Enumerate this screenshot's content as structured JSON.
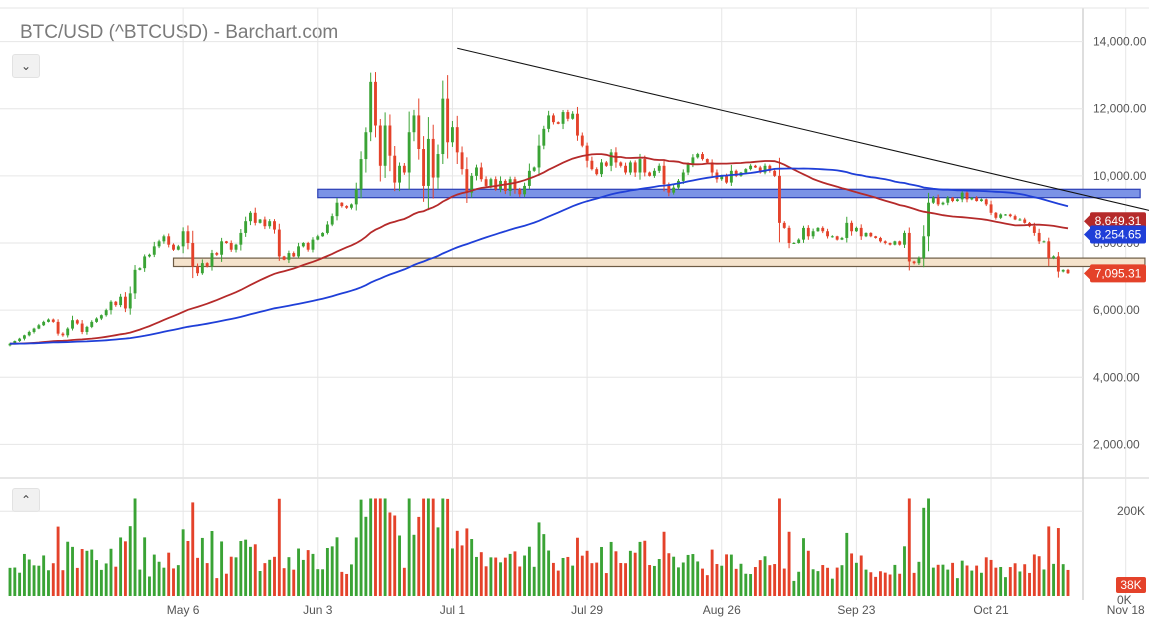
{
  "header": {
    "title": "BTC/USD (^BTCUSD) - Barchart.com",
    "collapse_price_icon": "chevron-down-icon",
    "collapse_volume_icon": "chevron-up-icon"
  },
  "colors": {
    "up": "#3aa335",
    "down": "#e4422a",
    "ma_red": "#b52a2a",
    "ma_blue": "#1f3fd8",
    "trendline": "#111111",
    "resistance_zone_fill": "#7b93e6",
    "resistance_zone_stroke": "#2b3fb5",
    "support_zone_fill": "#f5e3cc",
    "support_zone_stroke": "#6d5b45",
    "grid": "#e6e6e6"
  },
  "chart_data": {
    "type": "candlestick",
    "price_axis": {
      "ylim": [
        1000,
        15000
      ],
      "ticks": [
        2000,
        4000,
        6000,
        8000,
        10000,
        12000,
        14000
      ],
      "tick_labels": [
        "2,000.00",
        "4,000.00",
        "6,000.00",
        "8,000.00",
        "10,000.00",
        "12,000.00",
        "14,000.00"
      ]
    },
    "volume_axis": {
      "ylim": [
        0,
        250000
      ],
      "ticks": [
        0,
        200000
      ],
      "tick_labels": [
        "0K",
        "200K"
      ]
    },
    "x_labels": [
      {
        "index": 36,
        "label": "May 6"
      },
      {
        "index": 64,
        "label": "Jun 3"
      },
      {
        "index": 92,
        "label": "Jul 1"
      },
      {
        "index": 120,
        "label": "Jul 29"
      },
      {
        "index": 148,
        "label": "Aug 26"
      },
      {
        "index": 176,
        "label": "Sep 23"
      },
      {
        "index": 204,
        "label": "Oct 21"
      },
      {
        "index": 232,
        "label": "Nov 18"
      }
    ],
    "closes": [
      5000,
      5080,
      5150,
      5250,
      5350,
      5450,
      5550,
      5650,
      5720,
      5650,
      5300,
      5250,
      5450,
      5700,
      5600,
      5350,
      5500,
      5650,
      5750,
      5850,
      6000,
      6250,
      6150,
      6400,
      6050,
      6500,
      7200,
      7250,
      7600,
      7650,
      7900,
      8050,
      8200,
      7950,
      7800,
      7900,
      8350,
      8000,
      7300,
      7100,
      7400,
      7300,
      7700,
      7650,
      8050,
      8000,
      7800,
      7950,
      8300,
      8650,
      8900,
      8600,
      8700,
      8500,
      8650,
      8400,
      7600,
      7500,
      7700,
      7600,
      7900,
      8000,
      7800,
      8100,
      8200,
      8300,
      8550,
      8800,
      9200,
      9100,
      9050,
      9150,
      9600,
      10500,
      11300,
      12800,
      11500,
      10300,
      11500,
      10600,
      9800,
      10300,
      10100,
      11300,
      11800,
      10800,
      9700,
      11100,
      9950,
      10650,
      12300,
      11000,
      11450,
      10700,
      10200,
      9500,
      10000,
      10250,
      9900,
      9700,
      9900,
      9600,
      9850,
      9550,
      9900,
      9600,
      9450,
      9700,
      10150,
      10250,
      10900,
      11400,
      11800,
      11600,
      11550,
      11900,
      11700,
      11850,
      11200,
      10900,
      10450,
      10200,
      10050,
      10400,
      10300,
      10700,
      10400,
      10300,
      10100,
      10400,
      10100,
      10500,
      10100,
      10000,
      10150,
      10300,
      9750,
      9500,
      9650,
      9850,
      10100,
      10350,
      10550,
      10650,
      10500,
      10400,
      10100,
      9900,
      10000,
      9800,
      10150,
      10000,
      10100,
      10200,
      10300,
      10250,
      10100,
      10300,
      10150,
      10000,
      8600,
      8450,
      8000,
      8000,
      8100,
      8450,
      8200,
      8350,
      8450,
      8350,
      8200,
      8200,
      8100,
      8150,
      8600,
      8350,
      8450,
      8200,
      8300,
      8200,
      8150,
      8050,
      8000,
      7950,
      8050,
      7950,
      8300,
      7450,
      7400,
      7550,
      8200,
      9200,
      9350,
      9150,
      9200,
      9350,
      9250,
      9300,
      9500,
      9300,
      9350,
      9250,
      9300,
      9150,
      8900,
      8750,
      8850,
      8850,
      8800,
      8700,
      8700,
      8600,
      8500,
      8300,
      8050,
      8050,
      7550,
      7600,
      7150,
      7200,
      7100
    ],
    "moving_averages": [
      {
        "kind": "red",
        "last_value": 8649.31,
        "label": "8,649.31"
      },
      {
        "kind": "blue",
        "last_value": 8254.65,
        "label": "8,254.65"
      }
    ],
    "last_price": {
      "value": 7095.31,
      "label": "7,095.31"
    },
    "last_volume": {
      "label": "38K"
    },
    "trendline": {
      "start": {
        "index": 93,
        "price": 13800
      },
      "end": {
        "index": 239,
        "price": 8900
      }
    },
    "zones": [
      {
        "name": "resistance",
        "from_index": 64,
        "to_index": 235,
        "low": 9350,
        "high": 9600
      },
      {
        "name": "support",
        "from_index": 34,
        "to_index": 236,
        "low": 7300,
        "high": 7550
      }
    ]
  }
}
